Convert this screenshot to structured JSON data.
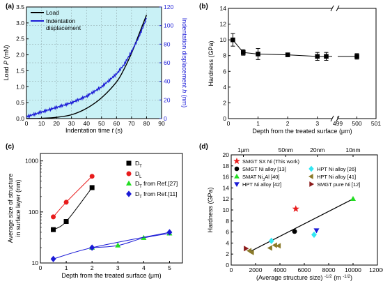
{
  "chart_data": [
    {
      "panel": "(a)",
      "type": "line",
      "xlabel": "Indentation time t (s)",
      "ylabel_left": "Load P (mN)",
      "ylabel_right": "Indentation displacement h (nm)",
      "xlim": [
        0,
        90
      ],
      "ylim_left": [
        0,
        3.5
      ],
      "ylim_right": [
        0,
        120
      ],
      "x_ticks": [
        0,
        10,
        20,
        30,
        40,
        50,
        60,
        70,
        80,
        90
      ],
      "y_ticks_left": [
        0.0,
        0.5,
        1.0,
        1.5,
        2.0,
        2.5,
        3.0,
        3.5
      ],
      "y_ticks_right": [
        0,
        20,
        40,
        60,
        80,
        100,
        120
      ],
      "grid": true,
      "legend_position": "top-left",
      "series": [
        {
          "name": "Load",
          "axis": "left",
          "color": "#000000",
          "x": [
            0,
            10,
            20,
            30,
            40,
            50,
            60,
            65,
            70,
            75,
            80
          ],
          "y": [
            0.0,
            0.01,
            0.04,
            0.12,
            0.32,
            0.65,
            1.15,
            1.55,
            2.05,
            2.65,
            3.25
          ]
        },
        {
          "name": "Indentation displacement",
          "axis": "right",
          "color": "#1a1ad6",
          "x": [
            0,
            10,
            20,
            30,
            40,
            50,
            60,
            65,
            70,
            75,
            80
          ],
          "y": [
            2,
            7,
            12,
            17,
            24,
            34,
            48,
            58,
            72,
            88,
            108
          ]
        }
      ]
    },
    {
      "panel": "(b)",
      "type": "line",
      "xlabel": "Depth from the treated surface (μm)",
      "ylabel": "Hardness (GPa)",
      "ylim": [
        0,
        14
      ],
      "y_ticks": [
        0,
        2,
        4,
        6,
        8,
        10,
        12,
        14
      ],
      "x_ticks": [
        "0",
        "1",
        "2",
        "3",
        "499",
        "500",
        "501"
      ],
      "axis_break": "between 3 and 499",
      "series": [
        {
          "name": "",
          "color": "#000000",
          "x": [
            0.15,
            0.5,
            1,
            2,
            3,
            3.3,
            500
          ],
          "y": [
            10.0,
            8.4,
            8.2,
            8.1,
            7.9,
            7.9,
            7.9
          ],
          "yerr": [
            0.8,
            0.35,
            0.7,
            0.2,
            0.5,
            0.5,
            0.35
          ]
        }
      ]
    },
    {
      "panel": "(c)",
      "type": "scatter",
      "xlabel": "Depth from the treated surface (μm)",
      "ylabel": "Average size of structure in surface layer (nm)",
      "xlim": [
        0,
        5.5
      ],
      "ylim": [
        10,
        1400
      ],
      "y_scale": "log",
      "x_ticks": [
        0,
        1,
        2,
        3,
        4,
        5
      ],
      "y_ticks": [
        10,
        100,
        1000
      ],
      "legend_position": "top-right",
      "series": [
        {
          "name": "D_T",
          "color": "#000000",
          "marker": "square",
          "x": [
            0.5,
            1,
            2
          ],
          "y": [
            45,
            65,
            300
          ]
        },
        {
          "name": "D_L",
          "color": "#e81c1c",
          "marker": "circle",
          "x": [
            0.5,
            1,
            2
          ],
          "y": [
            80,
            155,
            500
          ]
        },
        {
          "name": "D_T from Ref.[27]",
          "color": "#22dd22",
          "marker": "triangle",
          "x": [
            2,
            3,
            4,
            5
          ],
          "y": [
            20,
            22,
            31,
            38
          ]
        },
        {
          "name": "D_T from Ref.[11]",
          "color": "#1a1ad6",
          "marker": "diamond",
          "x": [
            0.5,
            2,
            5
          ],
          "y": [
            12,
            20,
            40
          ]
        }
      ]
    },
    {
      "panel": "(d)",
      "type": "scatter",
      "xlabel": "(Average structure size) -1/2 (m -1/2)",
      "ylabel": "Hardness (GPa)",
      "xlim": [
        0,
        12000
      ],
      "ylim": [
        0,
        20
      ],
      "x_ticks": [
        0,
        2000,
        4000,
        6000,
        8000,
        10000,
        12000
      ],
      "y_ticks": [
        0,
        2,
        4,
        6,
        8,
        10,
        12,
        14,
        16,
        18,
        20
      ],
      "top_axis_labels": [
        {
          "label": "1μm",
          "x": 1000
        },
        {
          "label": "50nm",
          "x": 4472
        },
        {
          "label": "20nm",
          "x": 7071
        },
        {
          "label": "10nm",
          "x": 10000
        }
      ],
      "fit_line": {
        "x": [
          1500,
          10000
        ],
        "y": [
          2.4,
          12.0
        ]
      },
      "series": [
        {
          "name": "SMGT SX Ni (This work)",
          "color": "#e81c1c",
          "marker": "star",
          "x": [
            5300
          ],
          "y": [
            10.2
          ]
        },
        {
          "name": "SMGT Ni alloy [13]",
          "color": "#000000",
          "marker": "circle",
          "x": [
            5200
          ],
          "y": [
            6.1
          ]
        },
        {
          "name": "SMAT Ni3Al [40]",
          "color": "#22dd22",
          "marker": "triangle",
          "x": [
            10000
          ],
          "y": [
            12.0
          ]
        },
        {
          "name": "HPT Ni alloy [42]",
          "color": "#1a1ad6",
          "marker": "triangle-down",
          "x": [
            7000
          ],
          "y": [
            6.3
          ]
        },
        {
          "name": "HPT Ni alloy [26]",
          "color": "#33e6f2",
          "marker": "diamond",
          "x": [
            3300,
            6800
          ],
          "y": [
            4.4,
            5.5
          ]
        },
        {
          "name": "HPT Ni alloy [41]",
          "color": "#8a7a2a",
          "marker": "triangle-left",
          "x": [
            1500,
            1700,
            3200,
            3600,
            3900
          ],
          "y": [
            2.6,
            2.3,
            3.1,
            3.6,
            3.5
          ]
        },
        {
          "name": "SMGT pure Ni [12]",
          "color": "#8b1a1a",
          "marker": "triangle-right",
          "x": [
            1200
          ],
          "y": [
            3.0
          ]
        }
      ]
    }
  ]
}
